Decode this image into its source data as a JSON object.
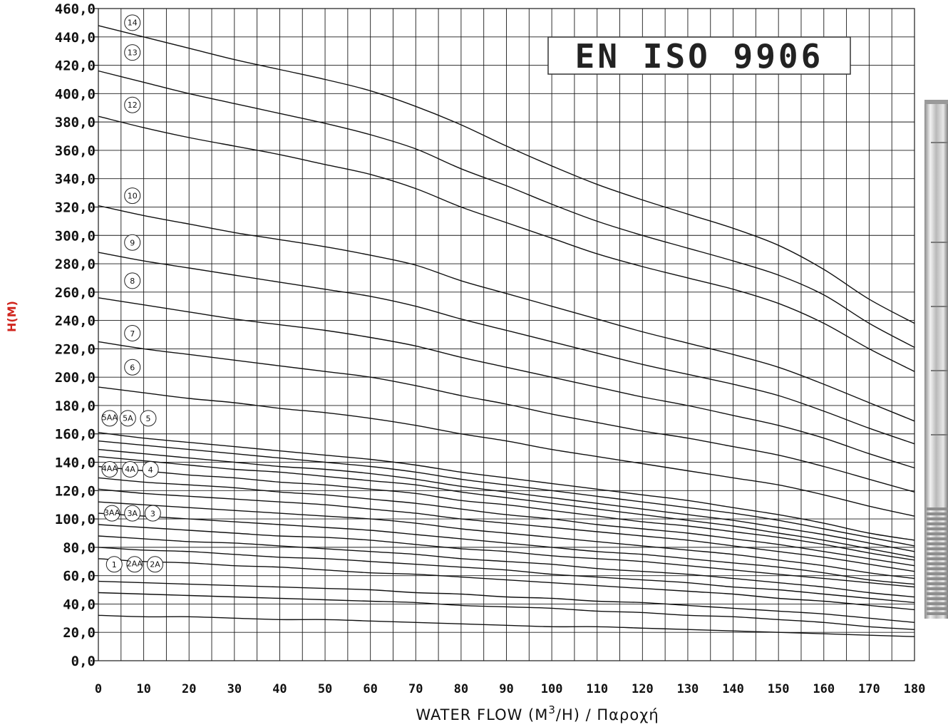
{
  "chart_data": {
    "type": "line",
    "title": "",
    "standard_badge": "EN ISO 9906",
    "xlabel": "WATER FLOW (M",
    "xlabel_sup": "3",
    "xlabel_rest": "/H) / Παροχή",
    "ylabel": "H(M)",
    "xlim": [
      0,
      180
    ],
    "ylim": [
      0,
      460
    ],
    "grid": true,
    "x_ticks": [
      "0",
      "10",
      "20",
      "30",
      "40",
      "50",
      "60",
      "70",
      "80",
      "90",
      "100",
      "110",
      "120",
      "130",
      "140",
      "150",
      "160",
      "170",
      "180"
    ],
    "y_ticks": [
      "0,0",
      "20,0",
      "40,0",
      "60,0",
      "80,0",
      "100,0",
      "120,0",
      "140,0",
      "160,0",
      "180,0",
      "200,0",
      "220,0",
      "240,0",
      "260,0",
      "280,0",
      "300,0",
      "320,0",
      "340,0",
      "360,0",
      "380,0",
      "400,0",
      "420,0",
      "440,0",
      "460,0"
    ],
    "x": [
      0,
      10,
      20,
      30,
      40,
      50,
      60,
      70,
      80,
      90,
      100,
      110,
      120,
      130,
      140,
      150,
      160,
      170,
      180
    ],
    "series": [
      {
        "name": "14",
        "values": [
          448,
          440,
          432,
          424,
          417,
          410,
          402,
          391,
          378,
          363,
          349,
          336,
          325,
          315,
          305,
          293,
          276,
          255,
          238
        ]
      },
      {
        "name": "13",
        "values": [
          416,
          408,
          400,
          393,
          386,
          379,
          371,
          361,
          347,
          335,
          322,
          310,
          300,
          291,
          282,
          272,
          258,
          238,
          221
        ]
      },
      {
        "name": "12",
        "values": [
          384,
          376,
          369,
          363,
          357,
          350,
          343,
          333,
          320,
          309,
          298,
          287,
          278,
          270,
          262,
          252,
          238,
          220,
          204
        ]
      },
      {
        "name": "10",
        "values": [
          321,
          314,
          308,
          302,
          297,
          292,
          286,
          279,
          268,
          259,
          250,
          241,
          232,
          224,
          216,
          207,
          195,
          182,
          169
        ]
      },
      {
        "name": "9",
        "values": [
          288,
          282,
          277,
          272,
          267,
          262,
          257,
          250,
          241,
          233,
          225,
          217,
          209,
          202,
          195,
          187,
          176,
          164,
          153
        ]
      },
      {
        "name": "8",
        "values": [
          256,
          251,
          246,
          241,
          237,
          233,
          228,
          222,
          214,
          207,
          200,
          193,
          186,
          180,
          173,
          166,
          157,
          146,
          136
        ]
      },
      {
        "name": "7",
        "values": [
          225,
          220,
          216,
          212,
          208,
          204,
          200,
          194,
          187,
          181,
          174,
          168,
          162,
          157,
          151,
          145,
          137,
          128,
          119
        ]
      },
      {
        "name": "6",
        "values": [
          193,
          189,
          185,
          182,
          178,
          175,
          171,
          166,
          160,
          155,
          149,
          144,
          139,
          134,
          129,
          124,
          117,
          109,
          102
        ]
      },
      {
        "name": "5",
        "values": [
          161,
          157,
          154,
          151,
          148,
          145,
          142,
          138,
          133,
          129,
          125,
          121,
          117,
          113,
          108,
          103,
          97,
          90,
          85
        ]
      },
      {
        "name": "5A",
        "values": [
          155,
          152,
          149,
          146,
          143,
          140,
          137,
          133,
          128,
          124,
          120,
          116,
          112,
          108,
          104,
          99,
          93,
          87,
          81
        ]
      },
      {
        "name": "5AA",
        "values": [
          149,
          146,
          143,
          140,
          137,
          135,
          132,
          128,
          123,
          119,
          115,
          111,
          107,
          103,
          99,
          94,
          89,
          83,
          77
        ]
      },
      {
        "name": "4",
        "values": [
          144,
          141,
          138,
          135,
          133,
          130,
          127,
          124,
          119,
          115,
          111,
          107,
          103,
          99,
          95,
          90,
          85,
          79,
          73
        ]
      },
      {
        "name": "4A",
        "values": [
          137,
          134,
          131,
          129,
          126,
          124,
          121,
          118,
          113,
          110,
          106,
          102,
          98,
          95,
          91,
          87,
          82,
          76,
          71
        ]
      },
      {
        "name": "4AA",
        "values": [
          129,
          126,
          124,
          122,
          119,
          117,
          114,
          111,
          107,
          103,
          100,
          96,
          93,
          90,
          86,
          82,
          77,
          72,
          67
        ]
      },
      {
        "name": "3",
        "values": [
          121,
          118,
          116,
          114,
          112,
          110,
          107,
          104,
          100,
          97,
          94,
          91,
          88,
          85,
          81,
          77,
          73,
          68,
          63
        ]
      },
      {
        "name": "3A",
        "values": [
          112,
          110,
          108,
          106,
          104,
          102,
          100,
          97,
          93,
          90,
          87,
          84,
          81,
          78,
          75,
          71,
          67,
          62,
          58
        ]
      },
      {
        "name": "3AA",
        "values": [
          104,
          102,
          100,
          98,
          96,
          94,
          92,
          89,
          86,
          83,
          80,
          77,
          75,
          72,
          69,
          66,
          62,
          57,
          54
        ]
      },
      {
        "name": "2A",
        "values": [
          96,
          94,
          92,
          90,
          88,
          87,
          85,
          82,
          79,
          77,
          74,
          72,
          70,
          67,
          64,
          61,
          58,
          55,
          52
        ]
      },
      {
        "name": "2AA",
        "values": [
          88,
          86,
          84,
          83,
          81,
          79,
          77,
          75,
          72,
          70,
          68,
          65,
          63,
          61,
          58,
          55,
          52,
          48,
          45
        ]
      },
      {
        "name": "1",
        "values": [
          80,
          78,
          77,
          75,
          73,
          72,
          70,
          68,
          66,
          64,
          61,
          59,
          57,
          55,
          52,
          50,
          47,
          44,
          41
        ]
      },
      {
        "name": "",
        "values": [
          72,
          70,
          69,
          67,
          66,
          64,
          62,
          61,
          59,
          57,
          55,
          53,
          51,
          49,
          47,
          44,
          42,
          39,
          36
        ]
      },
      {
        "name": "",
        "values": [
          56,
          55,
          54,
          53,
          52,
          51,
          50,
          48,
          47,
          45,
          44,
          42,
          41,
          39,
          37,
          35,
          33,
          30,
          27
        ]
      },
      {
        "name": "",
        "values": [
          48,
          47,
          46,
          45,
          44,
          43,
          42,
          41,
          39,
          38,
          37,
          35,
          34,
          32,
          31,
          29,
          27,
          24,
          22
        ]
      },
      {
        "name": "",
        "values": [
          32,
          31,
          31,
          30,
          29,
          29,
          28,
          27,
          26,
          25,
          24,
          24,
          23,
          22,
          21,
          20,
          19,
          18,
          17
        ]
      }
    ],
    "curve_labels": [
      {
        "text": "14",
        "x": 7.5,
        "y": 450
      },
      {
        "text": "13",
        "x": 7.5,
        "y": 429
      },
      {
        "text": "12",
        "x": 7.5,
        "y": 392
      },
      {
        "text": "10",
        "x": 7.5,
        "y": 328
      },
      {
        "text": "9",
        "x": 7.5,
        "y": 295
      },
      {
        "text": "8",
        "x": 7.5,
        "y": 268
      },
      {
        "text": "7",
        "x": 7.5,
        "y": 231
      },
      {
        "text": "6",
        "x": 7.5,
        "y": 207
      },
      {
        "text": "5AA",
        "x": 2.5,
        "y": 171
      },
      {
        "text": "5A",
        "x": 6.5,
        "y": 171
      },
      {
        "text": "5",
        "x": 11,
        "y": 171
      },
      {
        "text": "4AA",
        "x": 2.5,
        "y": 135
      },
      {
        "text": "4A",
        "x": 7,
        "y": 135
      },
      {
        "text": "4",
        "x": 11.5,
        "y": 135
      },
      {
        "text": "3AA",
        "x": 3,
        "y": 104
      },
      {
        "text": "3A",
        "x": 7.5,
        "y": 104
      },
      {
        "text": "3",
        "x": 12,
        "y": 104
      },
      {
        "text": "1",
        "x": 3.5,
        "y": 68
      },
      {
        "text": "2AA",
        "x": 8,
        "y": 68
      },
      {
        "text": "2A",
        "x": 12.5,
        "y": 68
      }
    ]
  },
  "colors": {
    "grid": "#1a1a1a",
    "curve": "#111111",
    "ylabel": "#d0251d"
  }
}
